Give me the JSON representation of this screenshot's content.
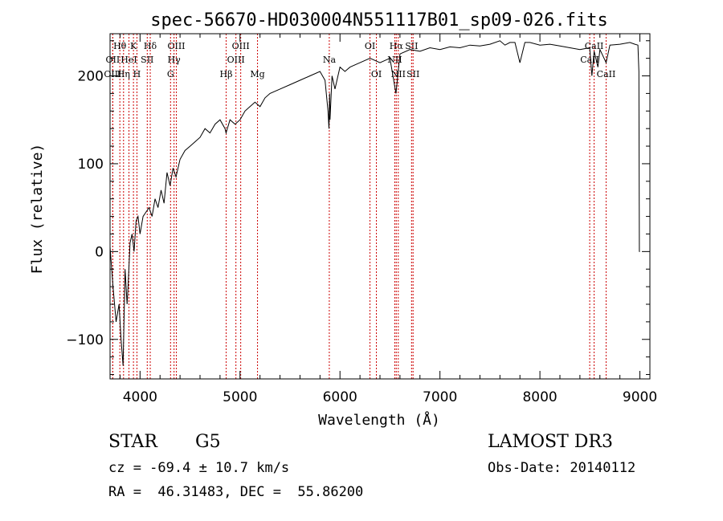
{
  "chart_data": {
    "type": "line",
    "title": "spec-56670-HD030004N551117B01_sp09-026.fits",
    "xlabel": "Wavelength (Å)",
    "ylabel": "Flux (relative)",
    "xlim": [
      3700,
      9100
    ],
    "ylim": [
      -145,
      248
    ],
    "xticks": [
      4000,
      5000,
      6000,
      7000,
      8000,
      9000
    ],
    "yticks": [
      -100,
      0,
      100,
      200
    ],
    "series": [
      {
        "name": "flux",
        "x": [
          3700,
          3730,
          3760,
          3790,
          3810,
          3830,
          3850,
          3870,
          3880,
          3900,
          3920,
          3940,
          3960,
          3980,
          4000,
          4030,
          4060,
          4090,
          4120,
          4150,
          4180,
          4210,
          4240,
          4270,
          4300,
          4330,
          4360,
          4400,
          4450,
          4500,
          4550,
          4600,
          4650,
          4700,
          4750,
          4800,
          4850,
          4860,
          4900,
          4950,
          5000,
          5050,
          5100,
          5150,
          5200,
          5250,
          5300,
          5400,
          5500,
          5600,
          5700,
          5800,
          5850,
          5880,
          5890,
          5896,
          5900,
          5920,
          5950,
          5980,
          6000,
          6050,
          6100,
          6200,
          6300,
          6400,
          6500,
          6560,
          6600,
          6700,
          6800,
          6900,
          7000,
          7100,
          7200,
          7300,
          7400,
          7500,
          7600,
          7650,
          7700,
          7750,
          7800,
          7850,
          7900,
          8000,
          8100,
          8200,
          8300,
          8400,
          8498,
          8520,
          8542,
          8580,
          8600,
          8662,
          8700,
          8800,
          8900,
          8950,
          8980,
          8990,
          8995,
          9000
        ],
        "values": [
          5,
          -40,
          -80,
          -60,
          -100,
          -130,
          -20,
          -60,
          -40,
          10,
          20,
          0,
          35,
          40,
          20,
          40,
          45,
          50,
          40,
          60,
          50,
          70,
          55,
          90,
          75,
          95,
          85,
          105,
          115,
          120,
          125,
          130,
          140,
          135,
          145,
          150,
          140,
          135,
          150,
          145,
          150,
          160,
          165,
          170,
          165,
          175,
          180,
          185,
          190,
          195,
          200,
          205,
          195,
          160,
          140,
          180,
          150,
          200,
          185,
          200,
          210,
          205,
          210,
          215,
          220,
          215,
          220,
          180,
          225,
          230,
          228,
          232,
          230,
          233,
          232,
          235,
          234,
          236,
          240,
          235,
          238,
          238,
          215,
          238,
          238,
          235,
          236,
          234,
          232,
          230,
          232,
          200,
          228,
          210,
          230,
          215,
          235,
          236,
          238,
          236,
          235,
          205,
          0,
          0
        ]
      }
    ],
    "line_markers": [
      {
        "name": "Hθ",
        "wavelength": 3798,
        "row": 0
      },
      {
        "name": "OII",
        "wavelength": 3727,
        "row": 1
      },
      {
        "name": "OIII",
        "wavelength": 3727,
        "row": 2
      },
      {
        "name": "K",
        "wavelength": 3934,
        "row": 0
      },
      {
        "name": "HeI",
        "wavelength": 3889,
        "row": 1
      },
      {
        "name": "Hη",
        "wavelength": 3835,
        "row": 2
      },
      {
        "name": "H",
        "wavelength": 3969,
        "row": 2
      },
      {
        "name": "SII",
        "wavelength": 4072,
        "row": 1
      },
      {
        "name": "Hδ",
        "wavelength": 4102,
        "row": 0
      },
      {
        "name": "OIII",
        "wavelength": 4363,
        "row": 0
      },
      {
        "name": "Hγ",
        "wavelength": 4340,
        "row": 1
      },
      {
        "name": "G",
        "wavelength": 4305,
        "row": 2
      },
      {
        "name": "Hβ",
        "wavelength": 4861,
        "row": 2
      },
      {
        "name": "OIII",
        "wavelength": 5007,
        "row": 0
      },
      {
        "name": "OIII",
        "wavelength": 4959,
        "row": 1
      },
      {
        "name": "Mg",
        "wavelength": 5175,
        "row": 2
      },
      {
        "name": "Na",
        "wavelength": 5893,
        "row": 1
      },
      {
        "name": "OI",
        "wavelength": 6300,
        "row": 0
      },
      {
        "name": "OI",
        "wavelength": 6364,
        "row": 2
      },
      {
        "name": "Hα",
        "wavelength": 6563,
        "row": 0
      },
      {
        "name": "SII",
        "wavelength": 6716,
        "row": 0
      },
      {
        "name": "NII",
        "wavelength": 6548,
        "row": 1
      },
      {
        "name": "NII",
        "wavelength": 6583,
        "row": 2
      },
      {
        "name": "SII",
        "wavelength": 6731,
        "row": 2
      },
      {
        "name": "CaII",
        "wavelength": 8542,
        "row": 0
      },
      {
        "name": "CaII",
        "wavelength": 8498,
        "row": 1
      },
      {
        "name": "CaII",
        "wavelength": 8662,
        "row": 2
      }
    ],
    "grid": false,
    "marker_line_color": "#cc0000",
    "line_color": "#000000"
  },
  "info": {
    "object_class": "STAR",
    "subclass": "G5",
    "survey": "LAMOST DR3",
    "redshift": "cz = -69.4 ± 10.7 km/s",
    "obs_date": "Obs-Date: 20140112",
    "coords": "RA =  46.31483, DEC =  55.86200"
  }
}
